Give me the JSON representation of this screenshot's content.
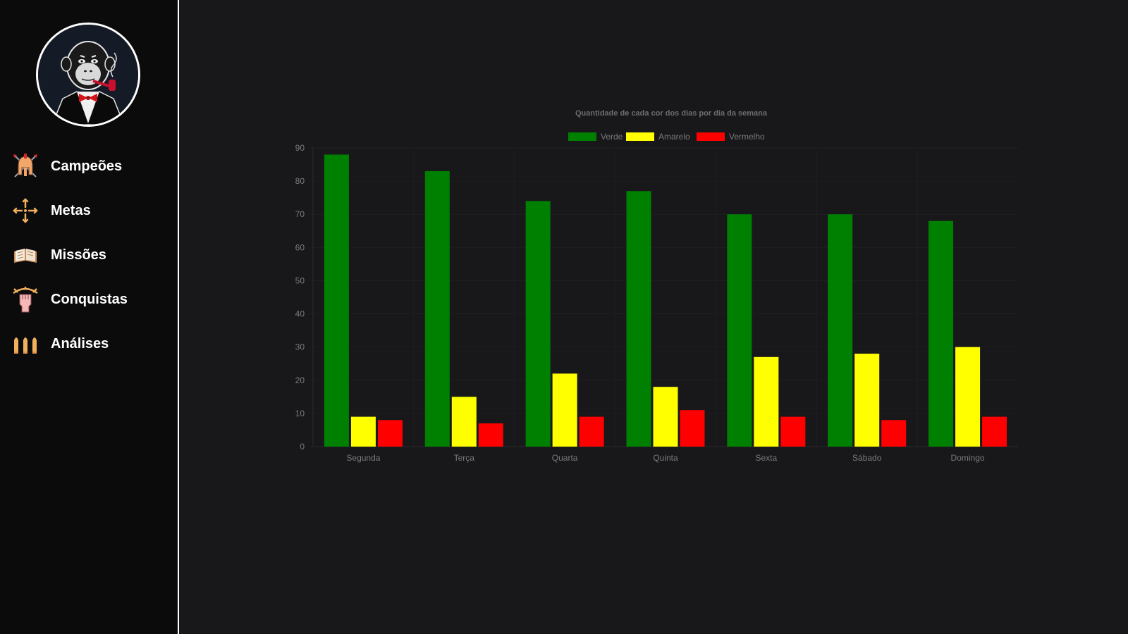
{
  "sidebar": {
    "nav": [
      {
        "label": "Campeões",
        "icon": "spartan-helmet-icon",
        "name": "nav-item-campeoes"
      },
      {
        "label": "Metas",
        "icon": "crosshair-target-icon",
        "name": "nav-item-metas"
      },
      {
        "label": "Missões",
        "icon": "open-book-icon",
        "name": "nav-item-missoes"
      },
      {
        "label": "Conquistas",
        "icon": "raised-fist-icon",
        "name": "nav-item-conquistas"
      },
      {
        "label": "Análises",
        "icon": "bullets-icon",
        "name": "nav-item-analises"
      }
    ]
  },
  "colors": {
    "verde": "#008000",
    "amarelo": "#ffff00",
    "vermelho": "#ff0000"
  },
  "chart_data": {
    "type": "bar",
    "title": "Quantidade de cada cor dos dias por dia da semana",
    "categories": [
      "Segunda",
      "Terça",
      "Quarta",
      "Quinta",
      "Sexta",
      "Sábado",
      "Domingo"
    ],
    "series": [
      {
        "name": "Verde",
        "color": "#008000",
        "values": [
          88,
          83,
          74,
          77,
          70,
          70,
          68
        ]
      },
      {
        "name": "Amarelo",
        "color": "#ffff00",
        "values": [
          9,
          15,
          22,
          18,
          27,
          28,
          30
        ]
      },
      {
        "name": "Vermelho",
        "color": "#ff0000",
        "values": [
          8,
          7,
          9,
          11,
          9,
          8,
          9
        ]
      }
    ],
    "yticks": [
      0,
      10,
      20,
      30,
      40,
      50,
      60,
      70,
      80,
      90
    ],
    "ylim": [
      0,
      90
    ],
    "legend_position": "top"
  }
}
